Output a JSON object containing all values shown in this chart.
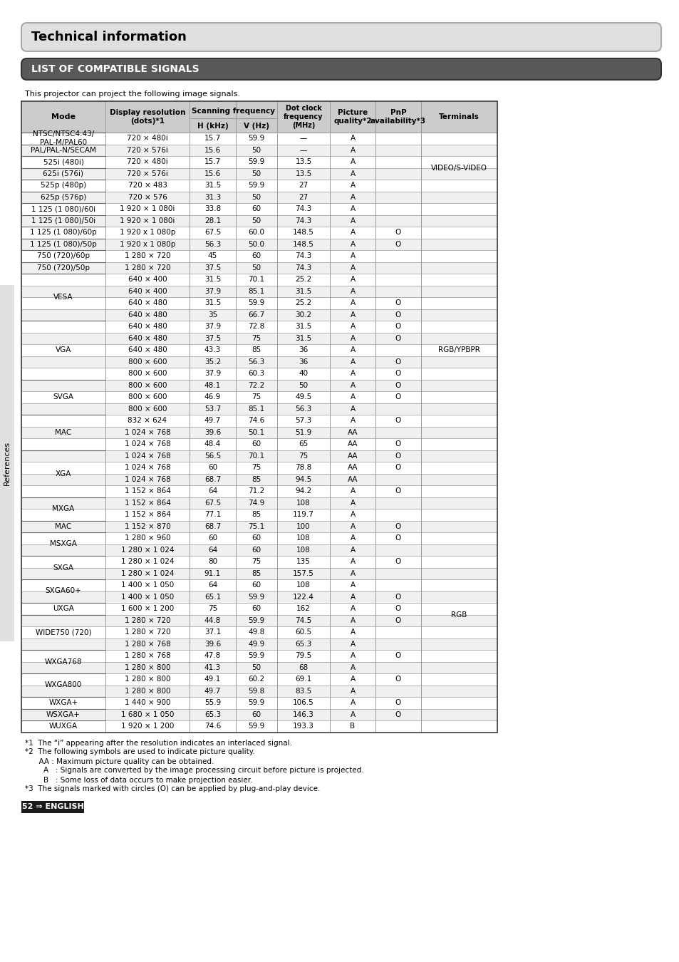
{
  "title": "Technical information",
  "section_title": "LIST OF COMPATIBLE SIGNALS",
  "intro_text": "This projector can project the following image signals.",
  "footnotes": [
    "*1  The “i” appearing after the resolution indicates an interlaced signal.",
    "*2  The following symbols are used to indicate picture quality.",
    "      AA : Maximum picture quality can be obtained.",
    "        A   : Signals are converted by the image processing circuit before picture is projected.",
    "        B   : Some loss of data occurs to make projection easier.",
    "*3  The signals marked with circles (O) can be applied by plug-and-play device."
  ],
  "page_label": "52 ⇒ ENGLISH",
  "side_label": "References",
  "table_rows": [
    [
      "NTSC/NTSC4.43/\nPAL-M/PAL60",
      "720 × 480i",
      "15.7",
      "59.9",
      "—",
      "A",
      "",
      "VIDEO/S-VIDEO"
    ],
    [
      "PAL/PAL-N/SECAM",
      "720 × 576i",
      "15.6",
      "50",
      "—",
      "A",
      "",
      ""
    ],
    [
      "525i (480i)",
      "720 × 480i",
      "15.7",
      "59.9",
      "13.5",
      "A",
      "",
      ""
    ],
    [
      "625i (576i)",
      "720 × 576i",
      "15.6",
      "50",
      "13.5",
      "A",
      "",
      ""
    ],
    [
      "525p (480p)",
      "720 × 483",
      "31.5",
      "59.9",
      "27",
      "A",
      "",
      ""
    ],
    [
      "625p (576p)",
      "720 × 576",
      "31.3",
      "50",
      "27",
      "A",
      "",
      ""
    ],
    [
      "1 125 (1 080)/60i",
      "1 920 × 1 080i",
      "33.8",
      "60",
      "74.3",
      "A",
      "",
      "RGB/YPBPR"
    ],
    [
      "1 125 (1 080)/50i",
      "1 920 × 1 080i",
      "28.1",
      "50",
      "74.3",
      "A",
      "",
      ""
    ],
    [
      "1 125 (1 080)/60p",
      "1 920 x 1 080p",
      "67.5",
      "60.0",
      "148.5",
      "A",
      "O",
      ""
    ],
    [
      "1 125 (1 080)/50p",
      "1 920 x 1 080p",
      "56.3",
      "50.0",
      "148.5",
      "A",
      "O",
      ""
    ],
    [
      "750 (720)/60p",
      "1 280 × 720",
      "45",
      "60",
      "74.3",
      "A",
      "",
      ""
    ],
    [
      "750 (720)/50p",
      "1 280 × 720",
      "37.5",
      "50",
      "74.3",
      "A",
      "",
      ""
    ],
    [
      "VESA",
      "640 × 400",
      "31.5",
      "70.1",
      "25.2",
      "A",
      "",
      ""
    ],
    [
      "",
      "640 × 400",
      "37.9",
      "85.1",
      "31.5",
      "A",
      "",
      ""
    ],
    [
      "",
      "640 × 480",
      "31.5",
      "59.9",
      "25.2",
      "A",
      "O",
      ""
    ],
    [
      "",
      "640 × 480",
      "35",
      "66.7",
      "30.2",
      "A",
      "O",
      ""
    ],
    [
      "VGA",
      "640 × 480",
      "37.9",
      "72.8",
      "31.5",
      "A",
      "O",
      ""
    ],
    [
      "",
      "640 × 480",
      "37.5",
      "75",
      "31.5",
      "A",
      "O",
      ""
    ],
    [
      "",
      "640 × 480",
      "43.3",
      "85",
      "36",
      "A",
      "",
      ""
    ],
    [
      "",
      "800 × 600",
      "35.2",
      "56.3",
      "36",
      "A",
      "O",
      ""
    ],
    [
      "",
      "800 × 600",
      "37.9",
      "60.3",
      "40",
      "A",
      "O",
      ""
    ],
    [
      "SVGA",
      "800 × 600",
      "48.1",
      "72.2",
      "50",
      "A",
      "O",
      ""
    ],
    [
      "",
      "800 × 600",
      "46.9",
      "75",
      "49.5",
      "A",
      "O",
      ""
    ],
    [
      "",
      "800 × 600",
      "53.7",
      "85.1",
      "56.3",
      "A",
      "",
      ""
    ],
    [
      "MAC",
      "832 × 624",
      "49.7",
      "74.6",
      "57.3",
      "A",
      "O",
      ""
    ],
    [
      "",
      "1 024 × 768",
      "39.6",
      "50.1",
      "51.9",
      "AA",
      "",
      ""
    ],
    [
      "",
      "1 024 × 768",
      "48.4",
      "60",
      "65",
      "AA",
      "O",
      ""
    ],
    [
      "XGA",
      "1 024 × 768",
      "56.5",
      "70.1",
      "75",
      "AA",
      "O",
      ""
    ],
    [
      "",
      "1 024 × 768",
      "60",
      "75",
      "78.8",
      "AA",
      "O",
      ""
    ],
    [
      "",
      "1 024 × 768",
      "68.7",
      "85",
      "94.5",
      "AA",
      "",
      ""
    ],
    [
      "",
      "1 152 × 864",
      "64",
      "71.2",
      "94.2",
      "A",
      "O",
      ""
    ],
    [
      "MXGA",
      "1 152 × 864",
      "67.5",
      "74.9",
      "108",
      "A",
      "",
      "RGB"
    ],
    [
      "",
      "1 152 × 864",
      "77.1",
      "85",
      "119.7",
      "A",
      "",
      ""
    ],
    [
      "MAC",
      "1 152 × 870",
      "68.7",
      "75.1",
      "100",
      "A",
      "O",
      ""
    ],
    [
      "MSXGA",
      "1 280 × 960",
      "60",
      "60",
      "108",
      "A",
      "O",
      ""
    ],
    [
      "",
      "1 280 × 1 024",
      "64",
      "60",
      "108",
      "A",
      "",
      ""
    ],
    [
      "SXGA",
      "1 280 × 1 024",
      "80",
      "75",
      "135",
      "A",
      "O",
      ""
    ],
    [
      "",
      "1 280 × 1 024",
      "91.1",
      "85",
      "157.5",
      "A",
      "",
      ""
    ],
    [
      "SXGA60+",
      "1 400 × 1 050",
      "64",
      "60",
      "108",
      "A",
      "",
      ""
    ],
    [
      "",
      "1 400 × 1 050",
      "65.1",
      "59.9",
      "122.4",
      "A",
      "O",
      ""
    ],
    [
      "UXGA",
      "1 600 × 1 200",
      "75",
      "60",
      "162",
      "A",
      "O",
      ""
    ],
    [
      "WIDE750 (720)",
      "1 280 × 720",
      "44.8",
      "59.9",
      "74.5",
      "A",
      "O",
      ""
    ],
    [
      "",
      "1 280 × 720",
      "37.1",
      "49.8",
      "60.5",
      "A",
      "",
      ""
    ],
    [
      "",
      "1 280 × 768",
      "39.6",
      "49.9",
      "65.3",
      "A",
      "",
      ""
    ],
    [
      "WXGA768",
      "1 280 × 768",
      "47.8",
      "59.9",
      "79.5",
      "A",
      "O",
      ""
    ],
    [
      "",
      "1 280 × 800",
      "41.3",
      "50",
      "68",
      "A",
      "",
      ""
    ],
    [
      "WXGA800",
      "1 280 × 800",
      "49.1",
      "60.2",
      "69.1",
      "A",
      "O",
      ""
    ],
    [
      "",
      "1 280 × 800",
      "49.7",
      "59.8",
      "83.5",
      "A",
      "",
      ""
    ],
    [
      "WXGA+",
      "1 440 × 900",
      "55.9",
      "59.9",
      "106.5",
      "A",
      "O",
      ""
    ],
    [
      "WSXGA+",
      "1 680 × 1 050",
      "65.3",
      "60",
      "146.3",
      "A",
      "O",
      ""
    ],
    [
      "WUXGA",
      "1 920 × 1 200",
      "74.6",
      "59.9",
      "193.3",
      "B",
      "",
      ""
    ]
  ],
  "bg_color": "#ffffff",
  "header_bg": "#cccccc",
  "section_bg": "#595959",
  "title_bg": "#e0e0e0",
  "border_color": "#999999",
  "text_color": "#000000",
  "row_colors": [
    "#ffffff",
    "#f0f0f0"
  ]
}
